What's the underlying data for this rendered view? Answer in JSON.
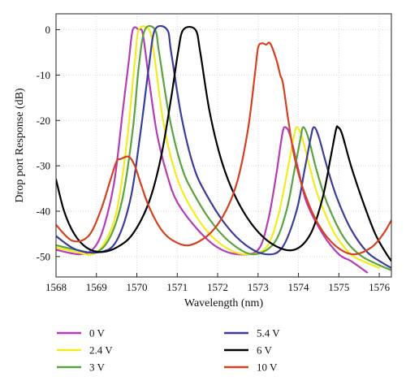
{
  "chart_data": {
    "type": "line",
    "xlabel": "Wavelength (nm)",
    "ylabel": "Drop port Response (dB)",
    "xlim": [
      1568,
      1576.3
    ],
    "ylim": [
      -54.5,
      3.5
    ],
    "x_ticks": [
      1568,
      1569,
      1570,
      1571,
      1572,
      1573,
      1574,
      1575,
      1576
    ],
    "y_ticks": [
      0,
      -10,
      -20,
      -30,
      -40,
      -50
    ],
    "grid": true,
    "legend_position": "bottom",
    "series": [
      {
        "name": "0 V",
        "color": "#b43cb4",
        "points": [
          [
            1568.0,
            -48.5
          ],
          [
            1568.6,
            -49.5
          ],
          [
            1568.95,
            -48.0
          ],
          [
            1569.2,
            -43.0
          ],
          [
            1569.45,
            -33.0
          ],
          [
            1569.65,
            -18.0
          ],
          [
            1569.8,
            -7.0
          ],
          [
            1569.9,
            0.0
          ],
          [
            1570.05,
            0.0
          ],
          [
            1570.15,
            -1.0
          ],
          [
            1570.3,
            -11.0
          ],
          [
            1570.5,
            -23.0
          ],
          [
            1570.75,
            -32.0
          ],
          [
            1571.0,
            -38.0
          ],
          [
            1571.5,
            -44.0
          ],
          [
            1572.0,
            -48.0
          ],
          [
            1572.5,
            -49.5
          ],
          [
            1573.0,
            -48.5
          ],
          [
            1573.25,
            -42.0
          ],
          [
            1573.45,
            -32.0
          ],
          [
            1573.6,
            -23.0
          ],
          [
            1573.68,
            -21.5
          ],
          [
            1573.8,
            -23.5
          ],
          [
            1574.0,
            -31.0
          ],
          [
            1574.2,
            -38.0
          ],
          [
            1574.6,
            -45.0
          ],
          [
            1575.0,
            -49.5
          ],
          [
            1575.3,
            -51.0
          ],
          [
            1575.7,
            -53.5
          ]
        ]
      },
      {
        "name": "2.4 V",
        "color": "#f2ec1e",
        "points": [
          [
            1568.0,
            -48.0
          ],
          [
            1568.5,
            -49.0
          ],
          [
            1568.9,
            -49.5
          ],
          [
            1569.2,
            -47.0
          ],
          [
            1569.5,
            -40.0
          ],
          [
            1569.75,
            -25.0
          ],
          [
            1569.95,
            -7.0
          ],
          [
            1570.05,
            0.0
          ],
          [
            1570.3,
            0.0
          ],
          [
            1570.42,
            -5.0
          ],
          [
            1570.65,
            -20.0
          ],
          [
            1570.9,
            -30.0
          ],
          [
            1571.2,
            -37.0
          ],
          [
            1571.7,
            -44.0
          ],
          [
            1572.2,
            -48.0
          ],
          [
            1572.7,
            -49.5
          ],
          [
            1573.2,
            -48.0
          ],
          [
            1573.5,
            -41.0
          ],
          [
            1573.75,
            -30.0
          ],
          [
            1573.9,
            -23.0
          ],
          [
            1573.97,
            -21.5
          ],
          [
            1574.1,
            -24.0
          ],
          [
            1574.3,
            -31.0
          ],
          [
            1574.5,
            -37.0
          ],
          [
            1574.9,
            -45.0
          ],
          [
            1575.3,
            -49.5
          ],
          [
            1575.6,
            -51.0
          ],
          [
            1576.0,
            -52.5
          ]
        ]
      },
      {
        "name": "3 V",
        "color": "#5aa33c",
        "points": [
          [
            1568.0,
            -47.5
          ],
          [
            1568.5,
            -48.5
          ],
          [
            1569.0,
            -49.0
          ],
          [
            1569.35,
            -45.5
          ],
          [
            1569.65,
            -37.0
          ],
          [
            1569.9,
            -22.0
          ],
          [
            1570.05,
            -8.0
          ],
          [
            1570.2,
            0.0
          ],
          [
            1570.45,
            0.0
          ],
          [
            1570.55,
            -5.0
          ],
          [
            1570.8,
            -19.0
          ],
          [
            1571.1,
            -30.0
          ],
          [
            1571.4,
            -36.0
          ],
          [
            1571.9,
            -43.0
          ],
          [
            1572.4,
            -47.5
          ],
          [
            1572.9,
            -49.5
          ],
          [
            1573.4,
            -47.0
          ],
          [
            1573.7,
            -40.0
          ],
          [
            1573.9,
            -31.0
          ],
          [
            1574.05,
            -24.0
          ],
          [
            1574.12,
            -21.5
          ],
          [
            1574.25,
            -24.0
          ],
          [
            1574.45,
            -31.0
          ],
          [
            1574.7,
            -38.0
          ],
          [
            1575.1,
            -45.5
          ],
          [
            1575.5,
            -49.5
          ],
          [
            1575.9,
            -51.5
          ],
          [
            1576.3,
            -53.0
          ]
        ]
      },
      {
        "name": "5.4 V",
        "color": "#3b3b9a",
        "points": [
          [
            1568.0,
            -45.5
          ],
          [
            1568.5,
            -48.5
          ],
          [
            1569.1,
            -49.0
          ],
          [
            1569.5,
            -46.5
          ],
          [
            1569.85,
            -37.0
          ],
          [
            1570.1,
            -22.0
          ],
          [
            1570.3,
            -8.0
          ],
          [
            1570.45,
            0.0
          ],
          [
            1570.75,
            0.0
          ],
          [
            1570.85,
            -5.0
          ],
          [
            1571.1,
            -19.0
          ],
          [
            1571.4,
            -30.0
          ],
          [
            1571.7,
            -36.0
          ],
          [
            1572.2,
            -43.0
          ],
          [
            1572.7,
            -47.5
          ],
          [
            1573.2,
            -49.5
          ],
          [
            1573.6,
            -48.0
          ],
          [
            1573.95,
            -40.0
          ],
          [
            1574.15,
            -31.0
          ],
          [
            1574.3,
            -24.0
          ],
          [
            1574.38,
            -21.5
          ],
          [
            1574.5,
            -23.5
          ],
          [
            1574.7,
            -30.0
          ],
          [
            1574.95,
            -37.0
          ],
          [
            1575.3,
            -44.0
          ],
          [
            1575.7,
            -49.0
          ],
          [
            1576.1,
            -51.5
          ],
          [
            1576.3,
            -52.5
          ]
        ]
      },
      {
        "name": "6 V",
        "color": "#000000",
        "points": [
          [
            1568.0,
            -33.0
          ],
          [
            1568.2,
            -40.0
          ],
          [
            1568.45,
            -45.0
          ],
          [
            1568.75,
            -48.0
          ],
          [
            1569.1,
            -49.0
          ],
          [
            1569.5,
            -48.0
          ],
          [
            1569.9,
            -45.0
          ],
          [
            1570.3,
            -38.0
          ],
          [
            1570.6,
            -28.0
          ],
          [
            1570.85,
            -15.0
          ],
          [
            1571.02,
            -5.0
          ],
          [
            1571.15,
            0.0
          ],
          [
            1571.45,
            0.0
          ],
          [
            1571.57,
            -5.0
          ],
          [
            1571.8,
            -18.0
          ],
          [
            1572.1,
            -29.0
          ],
          [
            1572.45,
            -37.0
          ],
          [
            1572.9,
            -43.5
          ],
          [
            1573.4,
            -47.5
          ],
          [
            1573.9,
            -48.5
          ],
          [
            1574.3,
            -45.0
          ],
          [
            1574.6,
            -37.0
          ],
          [
            1574.8,
            -28.0
          ],
          [
            1574.93,
            -22.0
          ],
          [
            1574.98,
            -21.5
          ],
          [
            1575.08,
            -23.0
          ],
          [
            1575.3,
            -30.0
          ],
          [
            1575.6,
            -38.0
          ],
          [
            1575.9,
            -45.0
          ],
          [
            1576.15,
            -49.0
          ],
          [
            1576.3,
            -51.0
          ]
        ]
      },
      {
        "name": "10 V",
        "color": "#d5401f",
        "points": [
          [
            1568.0,
            -43.0
          ],
          [
            1568.4,
            -46.5
          ],
          [
            1568.8,
            -45.5
          ],
          [
            1569.1,
            -40.0
          ],
          [
            1569.35,
            -33.0
          ],
          [
            1569.5,
            -29.0
          ],
          [
            1569.6,
            -28.5
          ],
          [
            1569.8,
            -28.0
          ],
          [
            1569.95,
            -30.0
          ],
          [
            1570.1,
            -34.0
          ],
          [
            1570.3,
            -39.0
          ],
          [
            1570.6,
            -44.0
          ],
          [
            1570.9,
            -46.5
          ],
          [
            1571.3,
            -47.5
          ],
          [
            1571.8,
            -45.0
          ],
          [
            1572.2,
            -40.0
          ],
          [
            1572.5,
            -33.0
          ],
          [
            1572.75,
            -22.0
          ],
          [
            1572.92,
            -10.0
          ],
          [
            1573.0,
            -4.0
          ],
          [
            1573.1,
            -3.0
          ],
          [
            1573.2,
            -3.3
          ],
          [
            1573.3,
            -3.0
          ],
          [
            1573.45,
            -6.5
          ],
          [
            1573.55,
            -10.0
          ],
          [
            1573.62,
            -12.0
          ],
          [
            1573.75,
            -20.0
          ],
          [
            1573.9,
            -28.0
          ],
          [
            1574.15,
            -36.0
          ],
          [
            1574.5,
            -43.0
          ],
          [
            1574.9,
            -47.5
          ],
          [
            1575.35,
            -49.5
          ],
          [
            1575.8,
            -48.0
          ],
          [
            1576.1,
            -45.0
          ],
          [
            1576.3,
            -42.0
          ]
        ]
      }
    ]
  }
}
